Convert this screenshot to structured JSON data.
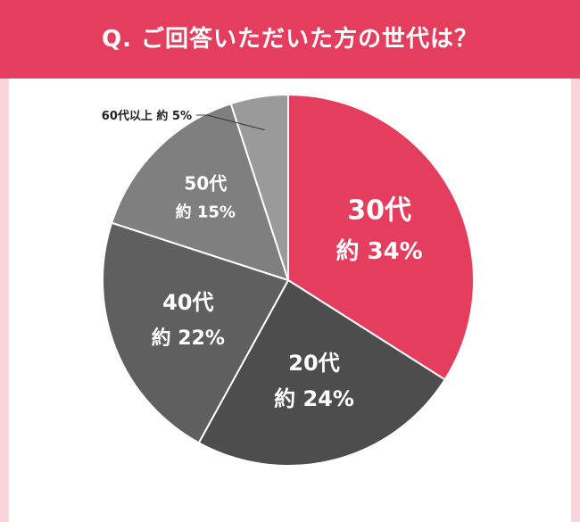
{
  "header": {
    "title": "Q. ご回答いただいた方の世代は？",
    "color": "#e53d5d"
  },
  "background_color": "#f9d4da",
  "chart_data": {
    "type": "pie",
    "title": "Q. ご回答いただいた方の世代は？",
    "start": "12 o'clock, clockwise",
    "slices": [
      {
        "label": "30代",
        "value_label": "約 34%",
        "value": 34,
        "color": "#e53d5d"
      },
      {
        "label": "20代",
        "value_label": "約 24%",
        "value": 24,
        "color": "#4d4d4d"
      },
      {
        "label": "40代",
        "value_label": "約 22%",
        "value": 22,
        "color": "#5f5f5f"
      },
      {
        "label": "50代",
        "value_label": "約 15%",
        "value": 15,
        "color": "#7f7f7f"
      },
      {
        "label": "60代以上",
        "value_label": "約 5%",
        "value": 5,
        "color": "#9a9a9a"
      }
    ],
    "small_slice_label": "60代以上  約 5%"
  }
}
